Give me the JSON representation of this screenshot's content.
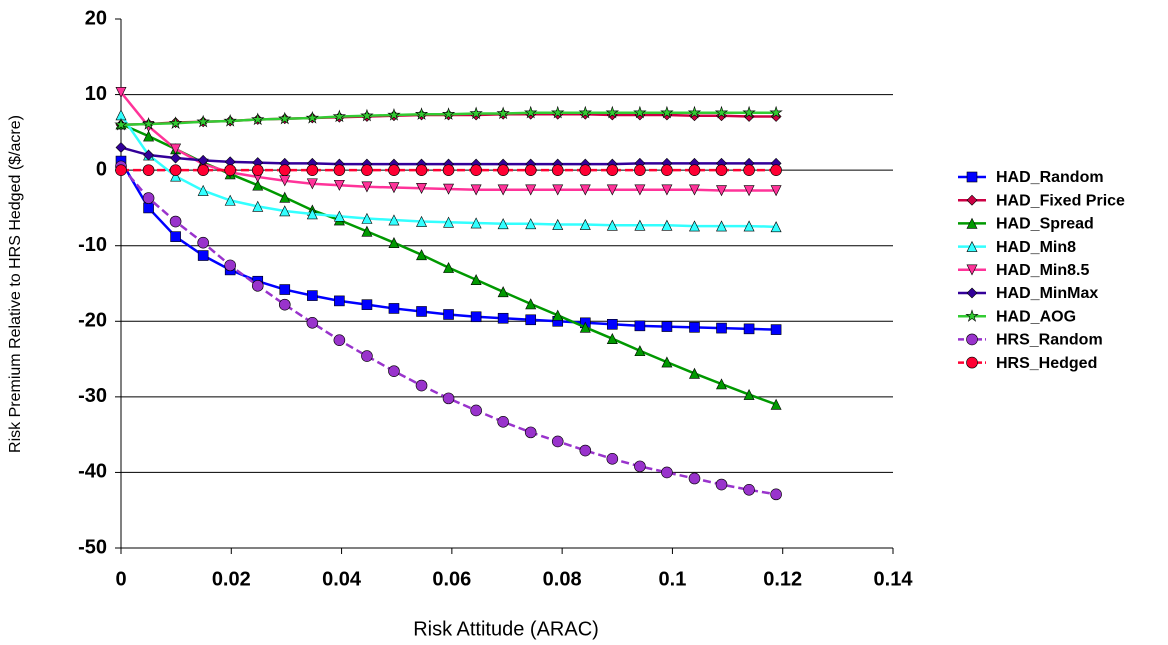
{
  "chart_data": {
    "type": "line",
    "xlabel": "Risk Attitude (ARAC)",
    "ylabel": "Risk Premium Relative to HRS Hedged ($/acre)",
    "x": [
      0,
      0.005,
      0.0099,
      0.0149,
      0.0198,
      0.0248,
      0.0297,
      0.0347,
      0.0396,
      0.0446,
      0.0495,
      0.0545,
      0.0594,
      0.0644,
      0.0693,
      0.0743,
      0.0792,
      0.0842,
      0.0891,
      0.0941,
      0.099,
      0.104,
      0.1089,
      0.1139,
      0.1188
    ],
    "xlim": [
      0,
      0.14
    ],
    "xticks": [
      0,
      0.02,
      0.04,
      0.06,
      0.08,
      0.1,
      0.12,
      0.14
    ],
    "ylim": [
      -50,
      20
    ],
    "yticks": [
      -50,
      -40,
      -30,
      -20,
      -10,
      0,
      10,
      20
    ],
    "grid": true,
    "legend": "right",
    "series": [
      {
        "name": "HAD_Random",
        "color": "#0000ff",
        "marker": "square",
        "dashed": false,
        "values": [
          1.2,
          -5,
          -8.8,
          -11.3,
          -13.2,
          -14.7,
          -15.8,
          -16.6,
          -17.3,
          -17.8,
          -18.3,
          -18.7,
          -19.1,
          -19.4,
          -19.6,
          -19.8,
          -20.0,
          -20.2,
          -20.4,
          -20.6,
          -20.7,
          -20.8,
          -20.9,
          -21.0,
          -21.1
        ]
      },
      {
        "name": "HAD_Fixed Price",
        "color": "#cc0044",
        "marker": "diamond",
        "dashed": false,
        "values": [
          6.0,
          6.1,
          6.3,
          6.4,
          6.5,
          6.7,
          6.8,
          6.9,
          7.0,
          7.1,
          7.2,
          7.3,
          7.3,
          7.3,
          7.4,
          7.4,
          7.4,
          7.4,
          7.3,
          7.3,
          7.3,
          7.2,
          7.2,
          7.1,
          7.1
        ]
      },
      {
        "name": "HAD_Spread",
        "color": "#009900",
        "marker": "triangle",
        "dashed": false,
        "values": [
          6.1,
          4.5,
          2.8,
          1.0,
          -0.5,
          -2.0,
          -3.6,
          -5.3,
          -6.6,
          -8.1,
          -9.6,
          -11.2,
          -12.9,
          -14.5,
          -16.1,
          -17.7,
          -19.2,
          -20.8,
          -22.3,
          -23.9,
          -25.4,
          -26.9,
          -28.3,
          -29.7,
          -31.0
        ]
      },
      {
        "name": "HAD_Min8",
        "color": "#33ffff",
        "marker": "triangle",
        "dashed": false,
        "values": [
          7.3,
          2.0,
          -0.8,
          -2.7,
          -4.0,
          -4.8,
          -5.4,
          -5.8,
          -6.1,
          -6.4,
          -6.6,
          -6.8,
          -6.9,
          -7.0,
          -7.1,
          -7.1,
          -7.2,
          -7.2,
          -7.3,
          -7.3,
          -7.3,
          -7.4,
          -7.4,
          -7.4,
          -7.5
        ]
      },
      {
        "name": "HAD_Min8.5",
        "color": "#ff3399",
        "marker": "down-triangle",
        "dashed": false,
        "values": [
          10.3,
          5.8,
          2.8,
          0.8,
          -0.3,
          -0.9,
          -1.4,
          -1.8,
          -2.0,
          -2.2,
          -2.3,
          -2.4,
          -2.5,
          -2.6,
          -2.6,
          -2.6,
          -2.6,
          -2.6,
          -2.6,
          -2.6,
          -2.6,
          -2.6,
          -2.7,
          -2.7,
          -2.7
        ]
      },
      {
        "name": "HAD_MinMax",
        "color": "#330099",
        "marker": "diamond",
        "dashed": false,
        "values": [
          3.0,
          2.0,
          1.6,
          1.3,
          1.1,
          1.0,
          0.9,
          0.9,
          0.8,
          0.8,
          0.8,
          0.8,
          0.8,
          0.8,
          0.8,
          0.8,
          0.8,
          0.8,
          0.8,
          0.9,
          0.9,
          0.9,
          0.9,
          0.9,
          0.9
        ]
      },
      {
        "name": "HAD_AOG",
        "color": "#33cc33",
        "marker": "star",
        "dashed": false,
        "values": [
          6.0,
          6.1,
          6.2,
          6.4,
          6.5,
          6.7,
          6.8,
          6.9,
          7.1,
          7.2,
          7.3,
          7.4,
          7.4,
          7.5,
          7.5,
          7.6,
          7.6,
          7.6,
          7.6,
          7.6,
          7.6,
          7.6,
          7.6,
          7.6,
          7.6
        ]
      },
      {
        "name": "HRS_Random",
        "color": "#9933cc",
        "marker": "circle",
        "dashed": true,
        "values": [
          0.5,
          -3.7,
          -6.8,
          -9.6,
          -12.6,
          -15.3,
          -17.8,
          -20.2,
          -22.5,
          -24.6,
          -26.6,
          -28.5,
          -30.2,
          -31.8,
          -33.3,
          -34.7,
          -35.9,
          -37.1,
          -38.2,
          -39.2,
          -40.0,
          -40.8,
          -41.6,
          -42.3,
          -42.9
        ]
      },
      {
        "name": "HRS_Hedged",
        "color": "#ff0033",
        "marker": "circle",
        "dashed": true,
        "values": [
          0,
          0,
          0,
          0,
          0,
          0,
          0,
          0,
          0,
          0,
          0,
          0,
          0,
          0,
          0,
          0,
          0,
          0,
          0,
          0,
          0,
          0,
          0,
          0,
          0
        ]
      }
    ]
  }
}
